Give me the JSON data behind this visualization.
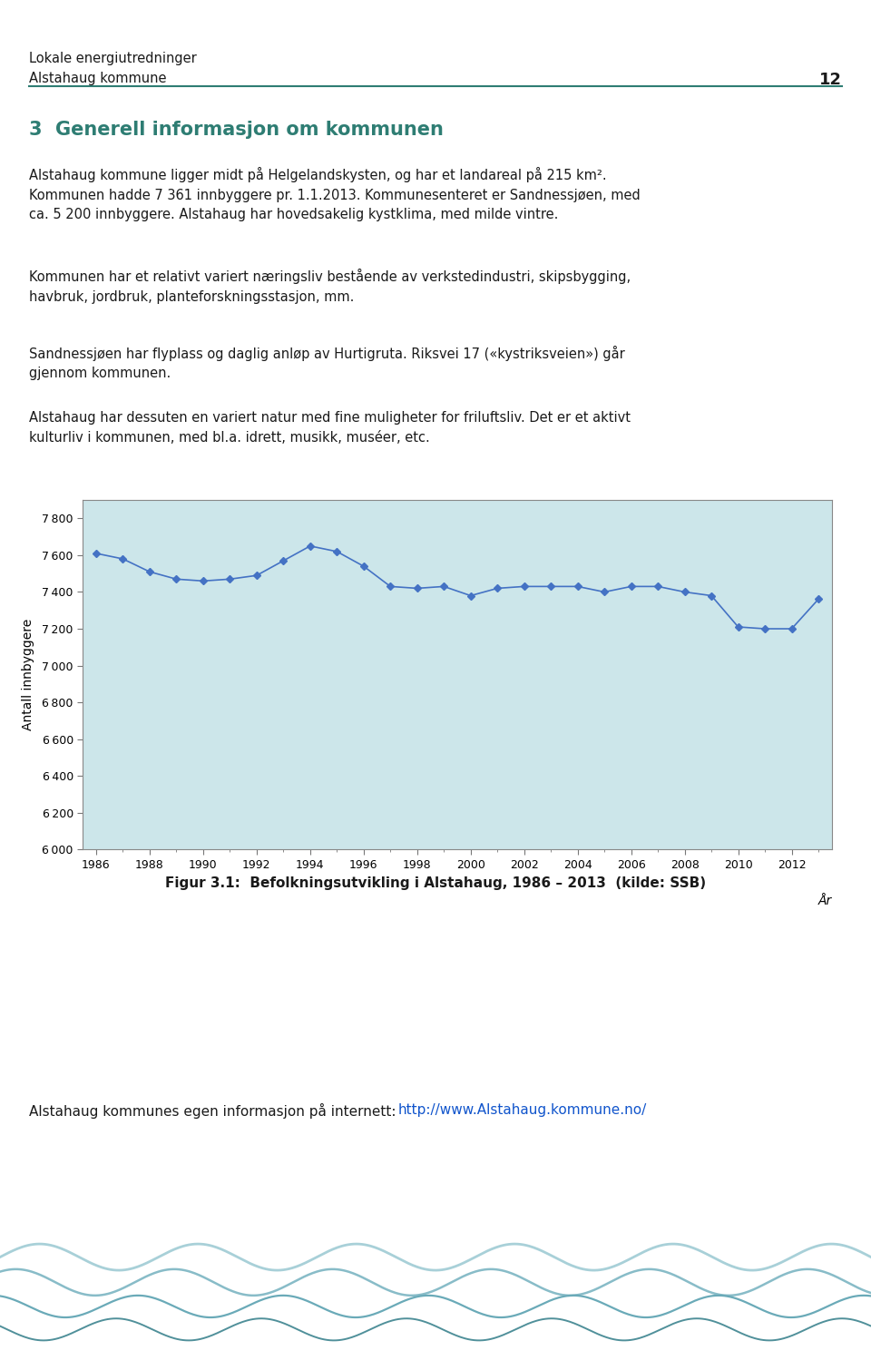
{
  "years": [
    1986,
    1987,
    1988,
    1989,
    1990,
    1991,
    1992,
    1993,
    1994,
    1995,
    1996,
    1997,
    1998,
    1999,
    2000,
    2001,
    2002,
    2003,
    2004,
    2005,
    2006,
    2007,
    2008,
    2009,
    2010,
    2011,
    2012,
    2013
  ],
  "values": [
    7610,
    7580,
    7510,
    7470,
    7460,
    7470,
    7490,
    7570,
    7650,
    7620,
    7540,
    7430,
    7420,
    7430,
    7380,
    7420,
    7430,
    7430,
    7430,
    7400,
    7430,
    7430,
    7400,
    7380,
    7210,
    7200,
    7200,
    7361
  ],
  "ylim": [
    6000,
    7900
  ],
  "yticks": [
    6000,
    6200,
    6400,
    6600,
    6800,
    7000,
    7200,
    7400,
    7600,
    7800
  ],
  "xticks": [
    1986,
    1988,
    1990,
    1992,
    1994,
    1996,
    1998,
    2000,
    2002,
    2004,
    2006,
    2008,
    2010,
    2012
  ],
  "xlabel": "År",
  "ylabel": "Antall innbyggere",
  "line_color": "#4472C4",
  "marker_color": "#4472C4",
  "plot_bg_color": "#cce6ea",
  "fig_bg_color": "#ffffff",
  "header_line1": "Lokale energiutredninger",
  "header_line2": "Alstahaug kommune",
  "page_number": "12",
  "section_title": "3  Generell informasjon om kommunen",
  "para1": "Alstahaug kommune ligger midt på Helgelandskysten, og har et landareal på 215 km².\nKommunen hadde 7 361 innbyggere pr. 1.1.2013. Kommunesenteret er Sandnessjøen, med\nca. 5 200 innbyggere. Alstahaug har hovedsakelig kystklima, med milde vintre.",
  "para2": "Kommunen har et relativt variert næringsliv bestående av verkstedindustri, skipsbygging,\nhavbruk, jordbruk, planteforskningsstasjon, mm.",
  "para3": "Sandnessjøen har flyplass og daglig anløp av Hurtigruta. Riksvei 17 («kystriksveien») går\ngjennom kommunen.",
  "para4": "Alstahaug har dessuten en variert natur med fine muligheter for friluftsliv. Det er et aktivt\nkulturliv i kommunen, med bl.a. idrett, musikk, muséer, etc.",
  "fig_caption": "Figur 3.1:  Befolkningsutvikling i Alstahaug, 1986 – 2013  (kilde: SSB)",
  "footer_text": "Alstahaug kommunes egen informasjon på internett: ",
  "footer_link": "http://www.Alstahaug.kommune.no/",
  "header_color": "#2e7d73",
  "section_color": "#2e7d73",
  "text_color": "#1a1a1a",
  "link_color": "#1155cc"
}
